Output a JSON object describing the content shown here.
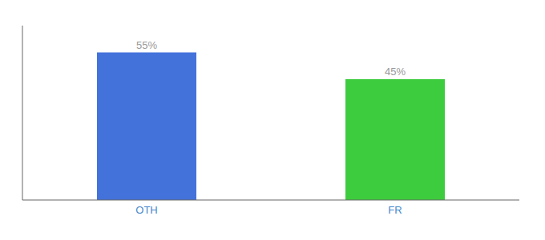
{
  "chart_data": {
    "type": "bar",
    "categories": [
      "OTH",
      "FR"
    ],
    "values": [
      55,
      45
    ],
    "value_labels": [
      "55%",
      "45%"
    ],
    "colors": [
      "#4472db",
      "#3dcc3d"
    ],
    "ylim": [
      0,
      65
    ],
    "data_labels": true,
    "tick_labels": "x",
    "grid": false
  }
}
